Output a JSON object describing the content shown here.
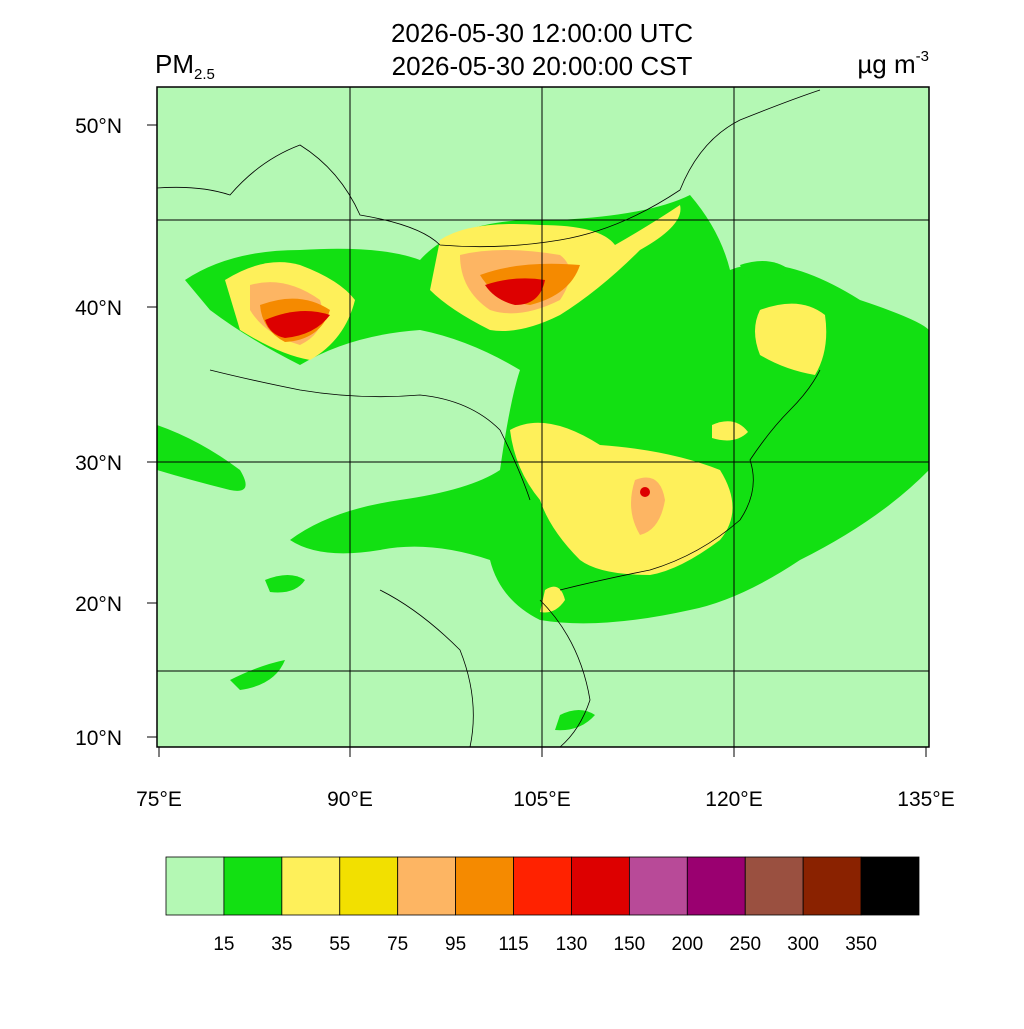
{
  "header": {
    "title_lines": [
      "2026-05-30 12:00:00 UTC",
      "2026-05-30 20:00:00 CST"
    ],
    "variable": {
      "main": "PM",
      "sub": "2.5"
    },
    "units": {
      "main": "µg m",
      "sup": "-3"
    }
  },
  "map": {
    "lat_labels": [
      "50°N",
      "40°N",
      "30°N",
      "20°N",
      "10°N"
    ],
    "lon_labels": [
      "75°E",
      "90°E",
      "105°E",
      "120°E",
      "135°E"
    ]
  },
  "colorbar": {
    "colors": [
      "#b4f8b4",
      "#12e012",
      "#fef05a",
      "#f2e000",
      "#fdb563",
      "#f58a00",
      "#ff2200",
      "#dd0000",
      "#b84a98",
      "#9a0070",
      "#9a5040",
      "#8a2200",
      "#000000"
    ],
    "levels": [
      15,
      35,
      55,
      75,
      95,
      115,
      130,
      150,
      200,
      250,
      300,
      350
    ]
  }
}
